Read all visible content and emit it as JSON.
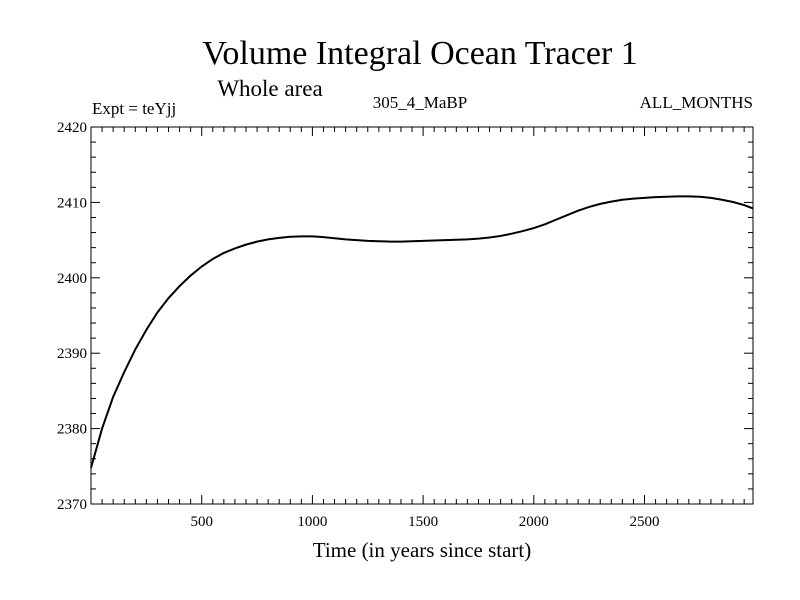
{
  "chart_data": {
    "type": "line",
    "title": "Volume Integral Ocean Tracer 1",
    "subtitle": "Whole area",
    "labels": {
      "left": "Expt = teYjj",
      "center": "305_4_MaBP",
      "right": "ALL_MONTHS"
    },
    "xlabel": "Time (in years since start)",
    "ylabel": "",
    "xlim": [
      0,
      2990
    ],
    "ylim": [
      2370,
      2420
    ],
    "x_ticks": [
      500,
      1000,
      1500,
      2000,
      2500
    ],
    "y_ticks": [
      2370,
      2380,
      2390,
      2400,
      2410,
      2420
    ],
    "x_minor_step": 50,
    "y_minor_step": 2,
    "grid": false,
    "line_color": "#000000",
    "series": [
      {
        "name": "Volume Integral Ocean Tracer 1",
        "x": [
          0,
          50,
          100,
          150,
          200,
          250,
          300,
          350,
          400,
          450,
          500,
          550,
          600,
          650,
          700,
          750,
          800,
          850,
          900,
          950,
          1000,
          1050,
          1100,
          1150,
          1200,
          1250,
          1300,
          1350,
          1400,
          1450,
          1500,
          1550,
          1600,
          1650,
          1700,
          1750,
          1800,
          1850,
          1900,
          1950,
          2000,
          2050,
          2100,
          2150,
          2200,
          2250,
          2300,
          2350,
          2400,
          2450,
          2500,
          2550,
          2600,
          2650,
          2700,
          2750,
          2800,
          2850,
          2900,
          2950,
          2990
        ],
        "y": [
          2374.8,
          2380.0,
          2384.2,
          2387.5,
          2390.5,
          2393.1,
          2395.4,
          2397.3,
          2398.9,
          2400.3,
          2401.5,
          2402.5,
          2403.3,
          2403.9,
          2404.4,
          2404.8,
          2405.1,
          2405.3,
          2405.45,
          2405.5,
          2405.5,
          2405.4,
          2405.25,
          2405.1,
          2405.0,
          2404.9,
          2404.85,
          2404.8,
          2404.8,
          2404.85,
          2404.9,
          2404.95,
          2405.0,
          2405.05,
          2405.1,
          2405.2,
          2405.35,
          2405.55,
          2405.85,
          2406.2,
          2406.6,
          2407.1,
          2407.7,
          2408.3,
          2408.9,
          2409.4,
          2409.8,
          2410.1,
          2410.35,
          2410.5,
          2410.6,
          2410.7,
          2410.75,
          2410.8,
          2410.8,
          2410.75,
          2410.6,
          2410.35,
          2410.05,
          2409.65,
          2409.2
        ]
      }
    ]
  }
}
